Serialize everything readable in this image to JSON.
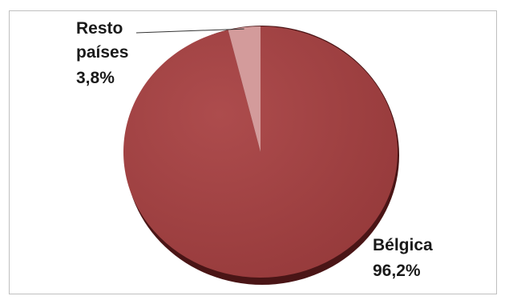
{
  "chart_data": {
    "type": "pie",
    "title": "",
    "slices": [
      {
        "name": "Bélgica",
        "value": 96.2,
        "label_name": "Bélgica",
        "label_value": "96,2%",
        "color": "#9e4142"
      },
      {
        "name": "Resto países",
        "value": 3.8,
        "label_name_line1": "Resto",
        "label_name_line2": "países",
        "label_value": "3,8%",
        "color": "#d39b9b"
      }
    ],
    "legend": "none",
    "three_d": true
  }
}
